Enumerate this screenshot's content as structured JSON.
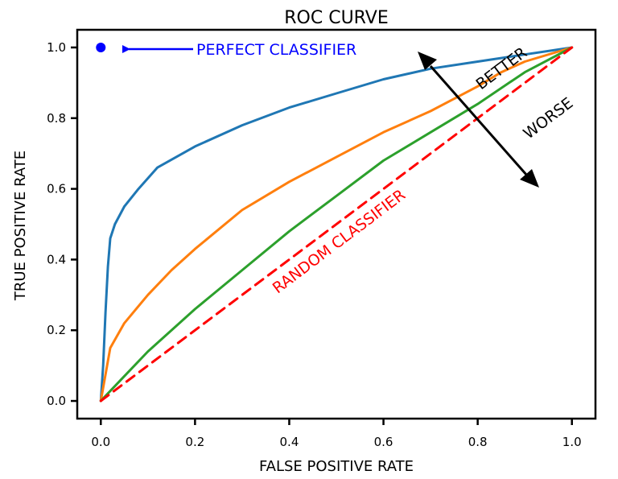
{
  "chart_data": {
    "type": "line",
    "title": "ROC CURVE",
    "xlabel": "FALSE POSITIVE RATE",
    "ylabel": "TRUE POSITIVE RATE",
    "xlim": [
      -0.05,
      1.05
    ],
    "ylim": [
      -0.05,
      1.05
    ],
    "xticks": [
      "0.0",
      "0.2",
      "0.4",
      "0.6",
      "0.8",
      "1.0"
    ],
    "yticks": [
      "0.0",
      "0.2",
      "0.4",
      "0.6",
      "0.8",
      "1.0"
    ],
    "grid": false,
    "series": [
      {
        "color": "#1f77b4",
        "x": [
          0.0,
          0.005,
          0.01,
          0.015,
          0.02,
          0.03,
          0.05,
          0.08,
          0.12,
          0.2,
          0.3,
          0.4,
          0.5,
          0.6,
          0.7,
          0.8,
          0.9,
          1.0
        ],
        "y": [
          0.0,
          0.1,
          0.25,
          0.38,
          0.46,
          0.5,
          0.55,
          0.6,
          0.66,
          0.72,
          0.78,
          0.83,
          0.87,
          0.91,
          0.94,
          0.96,
          0.98,
          1.0
        ]
      },
      {
        "color": "#ff7f0e",
        "x": [
          0.0,
          0.02,
          0.05,
          0.1,
          0.15,
          0.2,
          0.3,
          0.4,
          0.5,
          0.6,
          0.7,
          0.8,
          0.85,
          0.9,
          1.0
        ],
        "y": [
          0.0,
          0.15,
          0.22,
          0.3,
          0.37,
          0.43,
          0.54,
          0.62,
          0.69,
          0.76,
          0.82,
          0.89,
          0.93,
          0.96,
          1.0
        ]
      },
      {
        "color": "#2ca02c",
        "x": [
          0.0,
          0.05,
          0.1,
          0.2,
          0.3,
          0.4,
          0.5,
          0.6,
          0.7,
          0.8,
          0.9,
          1.0
        ],
        "y": [
          0.0,
          0.07,
          0.14,
          0.26,
          0.37,
          0.48,
          0.58,
          0.68,
          0.76,
          0.84,
          0.93,
          1.0
        ]
      },
      {
        "color": "#ff0000",
        "dashed": true,
        "x": [
          0.0,
          1.0
        ],
        "y": [
          0.0,
          1.0
        ]
      }
    ],
    "points": [
      {
        "x": 0.0,
        "y": 1.0,
        "color": "#0000ff"
      }
    ],
    "annotations": [
      {
        "text": "PERFECT CLASSIFIER",
        "color": "#0000ff"
      },
      {
        "text": "RANDOM CLASSIFIER",
        "color": "#ff0000"
      },
      {
        "text": "BETTER",
        "color": "#000000"
      },
      {
        "text": "WORSE",
        "color": "#000000"
      }
    ]
  }
}
